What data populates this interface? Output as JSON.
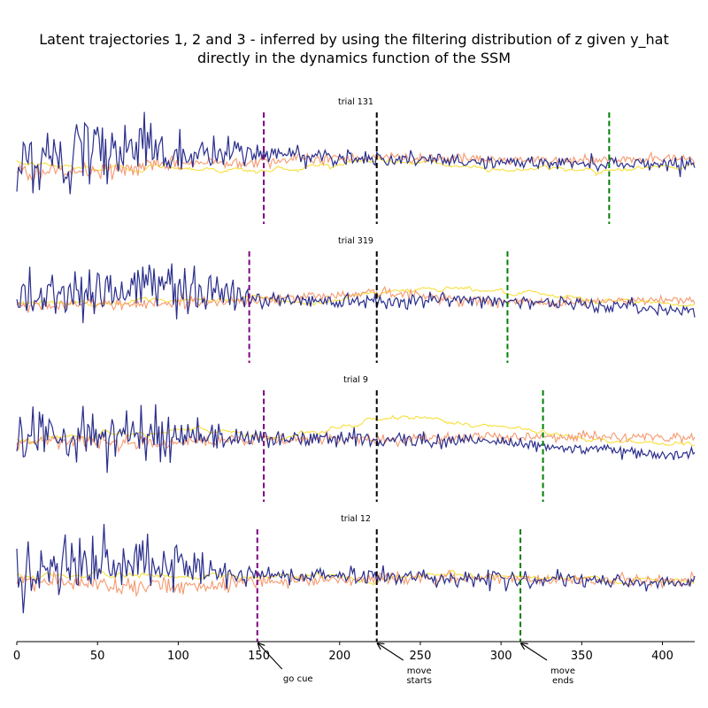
{
  "figure": {
    "title_line1": "Latent trajectories 1, 2 and 3 - inferred by using the filtering distribution of z given y_hat",
    "title_line2": "directly in the dynamics function of the SSM"
  },
  "colors": {
    "latent_1": "#2b2f8c",
    "latent_2": "#f59a70",
    "latent_3": "#f7df3c",
    "go_cue": "#800080",
    "move_start": "#000000",
    "move_end": "#008000"
  },
  "chart_data": {
    "type": "line",
    "xlim": [
      0,
      420
    ],
    "x_ticks": [
      0,
      50,
      100,
      150,
      200,
      250,
      300,
      350,
      400
    ],
    "subplots": [
      {
        "title": "trial 131",
        "events": {
          "go_cue": 153,
          "move_start": 223,
          "move_end": 367
        },
        "series": [
          {
            "key": "latent_1",
            "profile": [
              [
                0,
                0.0
              ],
              [
                30,
                0.05
              ],
              [
                80,
                0.35
              ],
              [
                100,
                0.1
              ],
              [
                150,
                0.15
              ],
              [
                223,
                0.05
              ],
              [
                300,
                -0.03
              ],
              [
                420,
                -0.05
              ]
            ],
            "noise_profile": [
              [
                0,
                0.5
              ],
              [
                100,
                0.5
              ],
              [
                150,
                0.2
              ],
              [
                250,
                0.1
              ],
              [
                420,
                0.12
              ]
            ]
          },
          {
            "key": "latent_2",
            "profile": [
              [
                0,
                -0.2
              ],
              [
                50,
                -0.2
              ],
              [
                100,
                -0.05
              ],
              [
                223,
                0.08
              ],
              [
                330,
                0.0
              ],
              [
                420,
                0.05
              ]
            ],
            "noise_profile": [
              [
                0,
                0.15
              ],
              [
                223,
                0.08
              ],
              [
                420,
                0.08
              ]
            ]
          },
          {
            "key": "latent_3",
            "profile": [
              [
                0,
                -0.05
              ],
              [
                50,
                -0.15
              ],
              [
                100,
                -0.1
              ],
              [
                150,
                -0.2
              ],
              [
                223,
                0.02
              ],
              [
                300,
                -0.15
              ],
              [
                360,
                -0.15
              ],
              [
                420,
                -0.1
              ]
            ],
            "noise_profile": [
              [
                0,
                0.05
              ],
              [
                420,
                0.04
              ]
            ]
          }
        ]
      },
      {
        "title": "trial 319",
        "events": {
          "go_cue": 144,
          "move_start": 223,
          "move_end": 304
        },
        "series": [
          {
            "key": "latent_1",
            "profile": [
              [
                0,
                0.1
              ],
              [
                60,
                0.2
              ],
              [
                100,
                0.3
              ],
              [
                150,
                0.0
              ],
              [
                223,
                0.0
              ],
              [
                300,
                0.0
              ],
              [
                420,
                -0.2
              ]
            ],
            "noise_profile": [
              [
                0,
                0.45
              ],
              [
                120,
                0.45
              ],
              [
                150,
                0.15
              ],
              [
                420,
                0.1
              ]
            ]
          },
          {
            "key": "latent_2",
            "profile": [
              [
                0,
                -0.1
              ],
              [
                100,
                -0.05
              ],
              [
                150,
                0.0
              ],
              [
                223,
                0.15
              ],
              [
                300,
                -0.05
              ],
              [
                420,
                0.0
              ]
            ],
            "noise_profile": [
              [
                0,
                0.1
              ],
              [
                420,
                0.08
              ]
            ]
          },
          {
            "key": "latent_3",
            "profile": [
              [
                0,
                -0.05
              ],
              [
                100,
                -0.05
              ],
              [
                150,
                0.05
              ],
              [
                180,
                -0.1
              ],
              [
                223,
                0.15
              ],
              [
                270,
                0.25
              ],
              [
                330,
                0.05
              ],
              [
                420,
                -0.1
              ]
            ],
            "noise_profile": [
              [
                0,
                0.04
              ],
              [
                420,
                0.04
              ]
            ]
          }
        ]
      },
      {
        "title": "trial 9",
        "events": {
          "go_cue": 153,
          "move_start": 223,
          "move_end": 326
        },
        "series": [
          {
            "key": "latent_1",
            "profile": [
              [
                0,
                0.1
              ],
              [
                50,
                0.05
              ],
              [
                100,
                0.1
              ],
              [
                153,
                0.0
              ],
              [
                223,
                0.0
              ],
              [
                300,
                -0.05
              ],
              [
                350,
                -0.2
              ],
              [
                420,
                -0.3
              ]
            ],
            "noise_profile": [
              [
                0,
                0.45
              ],
              [
                100,
                0.4
              ],
              [
                150,
                0.15
              ],
              [
                420,
                0.1
              ]
            ]
          },
          {
            "key": "latent_2",
            "profile": [
              [
                0,
                -0.05
              ],
              [
                100,
                -0.05
              ],
              [
                153,
                -0.02
              ],
              [
                223,
                0.0
              ],
              [
                330,
                0.05
              ],
              [
                420,
                0.02
              ]
            ],
            "noise_profile": [
              [
                0,
                0.12
              ],
              [
                420,
                0.08
              ]
            ]
          },
          {
            "key": "latent_3",
            "profile": [
              [
                0,
                0.0
              ],
              [
                60,
                0.1
              ],
              [
                100,
                0.2
              ],
              [
                160,
                0.0
              ],
              [
                223,
                0.35
              ],
              [
                250,
                0.42
              ],
              [
                300,
                0.2
              ],
              [
                360,
                0.0
              ],
              [
                420,
                -0.12
              ]
            ],
            "noise_profile": [
              [
                0,
                0.05
              ],
              [
                420,
                0.04
              ]
            ]
          }
        ]
      },
      {
        "title": "trial 12",
        "events": {
          "go_cue": 149,
          "move_start": 223,
          "move_end": 312
        },
        "series": [
          {
            "key": "latent_1",
            "profile": [
              [
                0,
                0.1
              ],
              [
                60,
                0.25
              ],
              [
                100,
                0.15
              ],
              [
                150,
                0.05
              ],
              [
                223,
                0.05
              ],
              [
                300,
                -0.02
              ],
              [
                420,
                -0.1
              ]
            ],
            "noise_profile": [
              [
                0,
                0.55
              ],
              [
                110,
                0.5
              ],
              [
                150,
                0.15
              ],
              [
                420,
                0.12
              ]
            ]
          },
          {
            "key": "latent_2",
            "profile": [
              [
                0,
                -0.05
              ],
              [
                50,
                -0.1
              ],
              [
                100,
                -0.15
              ],
              [
                150,
                -0.05
              ],
              [
                223,
                0.0
              ],
              [
                300,
                0.0
              ],
              [
                420,
                -0.05
              ]
            ],
            "noise_profile": [
              [
                0,
                0.15
              ],
              [
                420,
                0.08
              ]
            ]
          },
          {
            "key": "latent_3",
            "profile": [
              [
                0,
                0.05
              ],
              [
                150,
                0.05
              ],
              [
                223,
                0.0
              ],
              [
                270,
                0.1
              ],
              [
                330,
                0.0
              ],
              [
                420,
                -0.08
              ]
            ],
            "noise_profile": [
              [
                0,
                0.05
              ],
              [
                420,
                0.04
              ]
            ]
          }
        ]
      }
    ],
    "annotations": [
      {
        "text_lines": [
          "go cue"
        ],
        "target_x": 149,
        "color_key": "go_cue"
      },
      {
        "text_lines": [
          "move",
          "starts"
        ],
        "target_x": 223,
        "color_key": "move_start"
      },
      {
        "text_lines": [
          "move",
          "ends"
        ],
        "target_x": 312,
        "color_key": "move_end"
      }
    ]
  }
}
